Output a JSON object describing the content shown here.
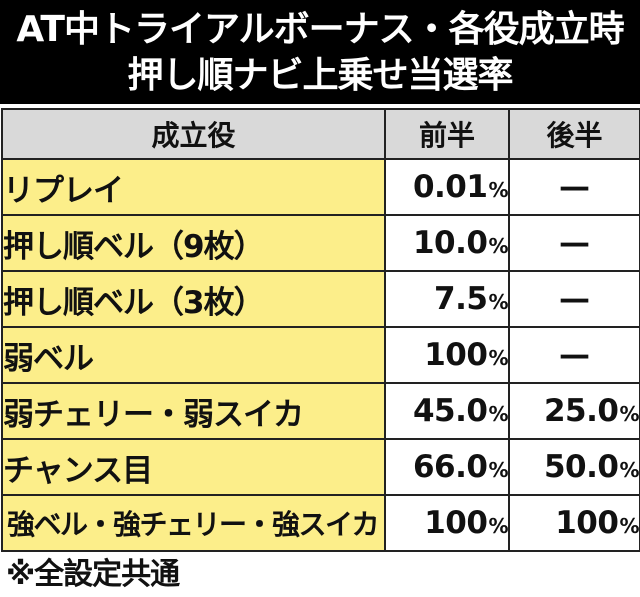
{
  "header": {
    "title_line1": "AT中トライアルボーナス・各役成立時",
    "title_line2": "押し順ナビ上乗せ当選率"
  },
  "table": {
    "headers": [
      "成立役",
      "前半",
      "後半"
    ],
    "rows": [
      {
        "role": "リプレイ",
        "first": "0.01",
        "first_unit": "%",
        "second": "—",
        "second_unit": ""
      },
      {
        "role": "押し順ベル（9枚）",
        "first": "10.0",
        "first_unit": "%",
        "second": "—",
        "second_unit": ""
      },
      {
        "role": "押し順ベル（3枚）",
        "first": "7.5",
        "first_unit": "%",
        "second": "—",
        "second_unit": ""
      },
      {
        "role": "弱ベル",
        "first": "100",
        "first_unit": "%",
        "second": "—",
        "second_unit": ""
      },
      {
        "role": "弱チェリー・弱スイカ",
        "first": "45.0",
        "first_unit": "%",
        "second": "25.0",
        "second_unit": "%"
      },
      {
        "role": "チャンス目",
        "first": "66.0",
        "first_unit": "%",
        "second": "50.0",
        "second_unit": "%"
      },
      {
        "role": "強ベル・強チェリー・強スイカ",
        "first": "100",
        "first_unit": "%",
        "second": "100",
        "second_unit": "%"
      }
    ]
  },
  "footnote": "※全設定共通",
  "colors": {
    "header_bg": "#000000",
    "header_text": "#ffffff",
    "role_cell_bg": "#fcee8a",
    "column_header_bg": "#d9d9d9",
    "border": "#222222"
  }
}
